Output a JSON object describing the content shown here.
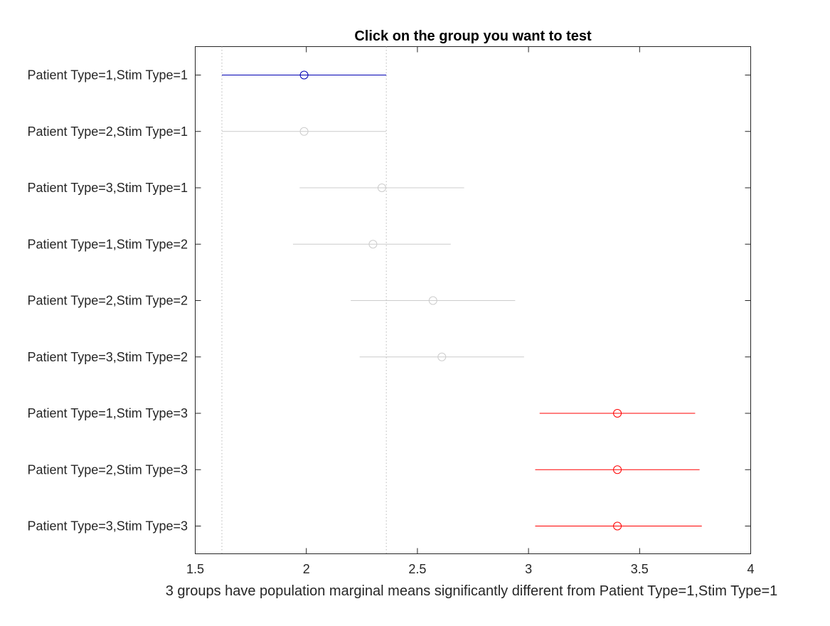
{
  "chart_data": {
    "type": "scatter",
    "title": "Click on the group you want to test",
    "xlabel": "3 groups have population marginal means significantly different from Patient Type=1,Stim Type=1",
    "ylabel": "",
    "xlim": [
      1.5,
      4
    ],
    "xticks": [
      "1.5",
      "2",
      "2.5",
      "3",
      "3.5",
      "4"
    ],
    "grid": false,
    "legend": "none",
    "colors": {
      "selected": "#0000b3",
      "significant": "#ff0000",
      "not_significant": "#cccccc"
    },
    "reference_lines": [
      1.62,
      2.36
    ],
    "groups": [
      {
        "label": "Patient Type=1,Stim Type=1",
        "mean": 1.99,
        "lower": 1.62,
        "upper": 2.36,
        "status": "selected"
      },
      {
        "label": "Patient Type=2,Stim Type=1",
        "mean": 1.99,
        "lower": 1.62,
        "upper": 2.36,
        "status": "not_significant"
      },
      {
        "label": "Patient Type=3,Stim Type=1",
        "mean": 2.34,
        "lower": 1.97,
        "upper": 2.71,
        "status": "not_significant"
      },
      {
        "label": "Patient Type=1,Stim Type=2",
        "mean": 2.3,
        "lower": 1.94,
        "upper": 2.65,
        "status": "not_significant"
      },
      {
        "label": "Patient Type=2,Stim Type=2",
        "mean": 2.57,
        "lower": 2.2,
        "upper": 2.94,
        "status": "not_significant"
      },
      {
        "label": "Patient Type=3,Stim Type=2",
        "mean": 2.61,
        "lower": 2.24,
        "upper": 2.98,
        "status": "not_significant"
      },
      {
        "label": "Patient Type=1,Stim Type=3",
        "mean": 3.4,
        "lower": 3.05,
        "upper": 3.75,
        "status": "significant"
      },
      {
        "label": "Patient Type=2,Stim Type=3",
        "mean": 3.4,
        "lower": 3.03,
        "upper": 3.77,
        "status": "significant"
      },
      {
        "label": "Patient Type=3,Stim Type=3",
        "mean": 3.4,
        "lower": 3.03,
        "upper": 3.78,
        "status": "significant"
      }
    ]
  }
}
